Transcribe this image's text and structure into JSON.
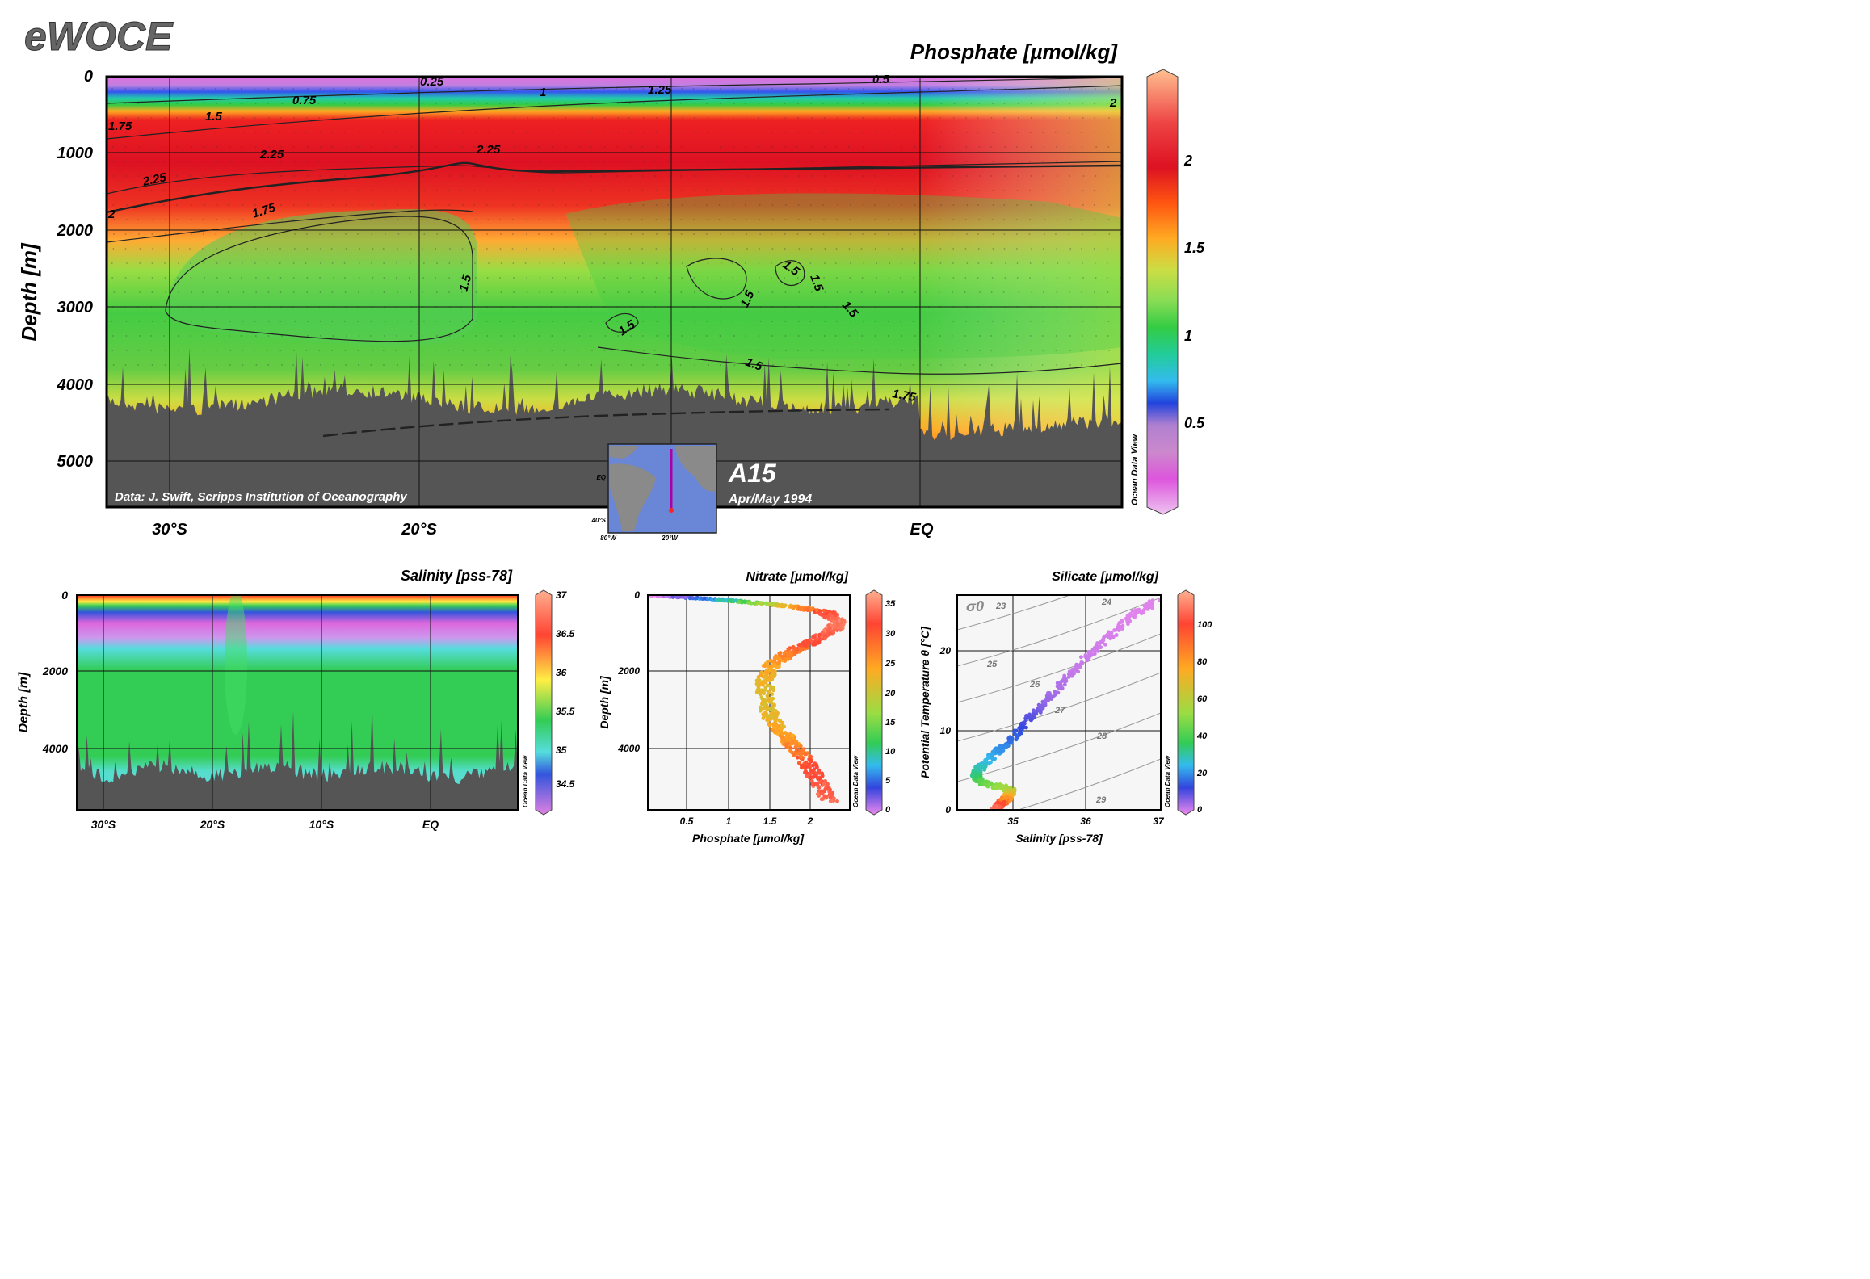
{
  "brand": "eWOCE",
  "colors": {
    "land": "#555555",
    "frame": "#000000",
    "grid": "#222222",
    "phosphate_scale": [
      "#eec4f0",
      "#dd66dd",
      "#b070d0",
      "#2244dd",
      "#33ccee",
      "#22cc44",
      "#99dd55",
      "#ddee44",
      "#ffaa22",
      "#ff5511",
      "#dd1122",
      "#ff9977"
    ],
    "salinity_scale": [
      "#e080e0",
      "#3355dd",
      "#55dddd",
      "#33cc55",
      "#ffee44",
      "#ff3322",
      "#ffb090"
    ]
  },
  "chart_data": [
    {
      "id": "main-section",
      "type": "heatmap",
      "title": "Phosphate [µmol/kg]",
      "ylabel": "Depth [m]",
      "xlabel": "",
      "x_ticks": [
        "30°S",
        "20°S",
        "EQ"
      ],
      "y_ticks": [
        "0",
        "1000",
        "2000",
        "3000",
        "4000",
        "5000"
      ],
      "ylim": [
        5600,
        0
      ],
      "colorbar_ticks": [
        "2",
        "1.5",
        "1",
        "0.5"
      ],
      "contour_labels": [
        "0.25",
        "0.75",
        "1.5",
        "1.75",
        "2.25",
        "2.25",
        "2",
        "1.75",
        "2.25",
        "1.25",
        "1",
        "0.5",
        "2",
        "1.5",
        "1.5",
        "1.5",
        "1.5",
        "1.5",
        "1.5",
        "1.5",
        "1.75"
      ],
      "credit": "Data: J. Swift, Scripps Institution of Oceanography",
      "section_name": "A15",
      "section_date": "Apr/May 1994",
      "watermark": "Ocean Data View",
      "inset_map": {
        "lat_labels": [
          "EQ",
          "40°S"
        ],
        "lon_labels": [
          "80°W",
          "20°W"
        ]
      }
    },
    {
      "id": "salinity-section",
      "type": "heatmap",
      "title": "Salinity [pss-78]",
      "ylabel": "Depth [m]",
      "x_ticks": [
        "30°S",
        "20°S",
        "10°S",
        "EQ"
      ],
      "y_ticks": [
        "0",
        "2000",
        "4000"
      ],
      "colorbar_ticks": [
        "37",
        "36.5",
        "36",
        "35.5",
        "35",
        "34.5"
      ],
      "watermark": "Ocean Data View"
    },
    {
      "id": "phosphate-depth",
      "type": "scatter",
      "title": "Nitrate [µmol/kg]",
      "xlabel": "Phosphate [µmol/kg]",
      "ylabel": "Depth [m]",
      "x_ticks": [
        "0.5",
        "1",
        "1.5",
        "2"
      ],
      "y_ticks": [
        "0",
        "2000",
        "4000"
      ],
      "xlim": [
        0,
        2.5
      ],
      "ylim": [
        5600,
        0
      ],
      "colorbar_ticks": [
        "35",
        "30",
        "25",
        "20",
        "15",
        "10",
        "5",
        "0"
      ],
      "watermark": "Ocean Data View",
      "profile": [
        {
          "depth": 0,
          "x": 0.05,
          "c": 0
        },
        {
          "depth": 50,
          "x": 0.4,
          "c": 2
        },
        {
          "depth": 120,
          "x": 0.9,
          "c": 8
        },
        {
          "depth": 200,
          "x": 1.3,
          "c": 15
        },
        {
          "depth": 300,
          "x": 1.8,
          "c": 24
        },
        {
          "depth": 450,
          "x": 2.2,
          "c": 31
        },
        {
          "depth": 650,
          "x": 2.35,
          "c": 35
        },
        {
          "depth": 900,
          "x": 2.3,
          "c": 34
        },
        {
          "depth": 1200,
          "x": 2.05,
          "c": 31
        },
        {
          "depth": 1500,
          "x": 1.75,
          "c": 27
        },
        {
          "depth": 1800,
          "x": 1.55,
          "c": 24
        },
        {
          "depth": 2200,
          "x": 1.45,
          "c": 22
        },
        {
          "depth": 2800,
          "x": 1.45,
          "c": 21
        },
        {
          "depth": 3300,
          "x": 1.55,
          "c": 22
        },
        {
          "depth": 3800,
          "x": 1.75,
          "c": 25
        },
        {
          "depth": 4300,
          "x": 1.95,
          "c": 29
        },
        {
          "depth": 4800,
          "x": 2.1,
          "c": 32
        },
        {
          "depth": 5400,
          "x": 2.25,
          "c": 34
        }
      ]
    },
    {
      "id": "theta-s",
      "type": "scatter",
      "title": "Silicate [µmol/kg]",
      "xlabel": "Salinity [pss-78]",
      "ylabel": "Potential Temperature θ [°C]",
      "x_ticks": [
        "35",
        "36",
        "37"
      ],
      "y_ticks": [
        "0",
        "10",
        "20"
      ],
      "xlim": [
        34.2,
        37
      ],
      "ylim": [
        0,
        27
      ],
      "sigma_label": "σ0",
      "isopycnal_labels": [
        "23",
        "24",
        "25",
        "26",
        "27",
        "28",
        "29"
      ],
      "colorbar_ticks": [
        "100",
        "80",
        "60",
        "40",
        "20",
        "0"
      ],
      "watermark": "Ocean Data View",
      "profile": [
        {
          "s": 37.0,
          "t": 26.5,
          "c": 1
        },
        {
          "s": 36.6,
          "t": 24.5,
          "c": 1
        },
        {
          "s": 36.2,
          "t": 21.0,
          "c": 2
        },
        {
          "s": 35.8,
          "t": 17.5,
          "c": 3
        },
        {
          "s": 35.45,
          "t": 14.0,
          "c": 6
        },
        {
          "s": 35.15,
          "t": 11.0,
          "c": 12
        },
        {
          "s": 34.85,
          "t": 8.0,
          "c": 20
        },
        {
          "s": 34.6,
          "t": 6.0,
          "c": 26
        },
        {
          "s": 34.45,
          "t": 4.5,
          "c": 33
        },
        {
          "s": 34.5,
          "t": 3.5,
          "c": 42
        },
        {
          "s": 34.75,
          "t": 3.0,
          "c": 50
        },
        {
          "s": 34.95,
          "t": 2.4,
          "c": 58
        },
        {
          "s": 34.9,
          "t": 1.6,
          "c": 75
        },
        {
          "s": 34.8,
          "t": 0.8,
          "c": 95
        },
        {
          "s": 34.72,
          "t": 0.2,
          "c": 110
        }
      ]
    }
  ]
}
